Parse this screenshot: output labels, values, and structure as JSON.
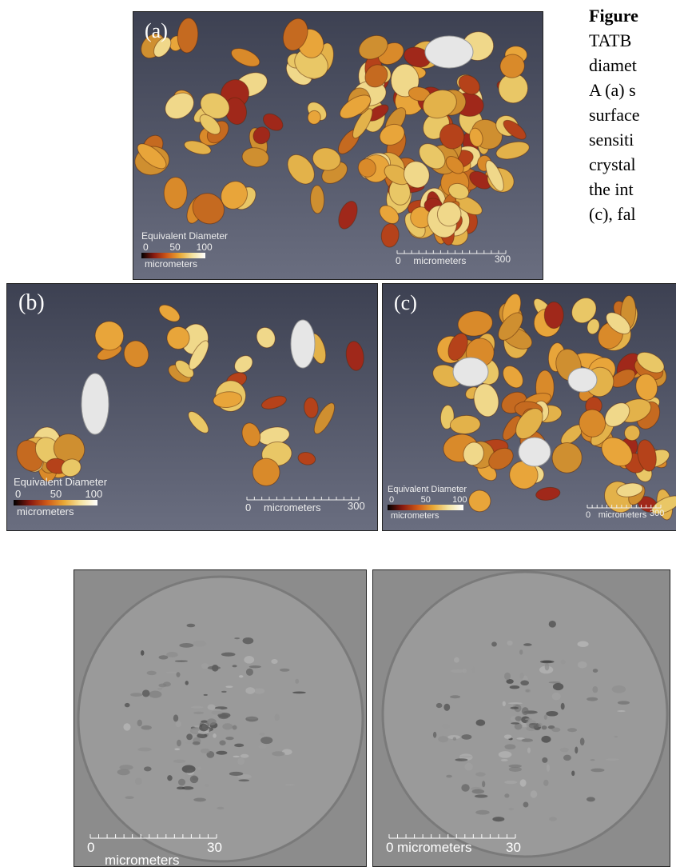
{
  "caption": {
    "lines": [
      "Figure",
      "TATB",
      "diamet",
      "A (a) s",
      "surface",
      "sensiti",
      "crystal",
      "the int",
      "(c), fal"
    ]
  },
  "panels": [
    {
      "label": "(a)",
      "legend_title": "Equivalent Diameter",
      "legend_ticks": [
        "0",
        "50",
        "100"
      ],
      "legend_unit": "micrometers",
      "scale_start": "0",
      "scale_unit": "micrometers",
      "scale_end": "300"
    },
    {
      "label": "(b)",
      "legend_title": "Equivalent Diameter",
      "legend_ticks": [
        "0",
        "50",
        "100"
      ],
      "legend_unit": "micrometers",
      "scale_start": "0",
      "scale_unit": "micrometers",
      "scale_end": "300"
    },
    {
      "label": "(c)",
      "legend_title": "Equivalent Diameter",
      "legend_ticks": [
        "0",
        "50",
        "100"
      ],
      "legend_unit": "micrometers",
      "scale_start": "0",
      "scale_unit": "micrometers",
      "scale_end": "300"
    }
  ],
  "micrographs": [
    {
      "scale_start": "0",
      "scale_unit": "micrometers",
      "scale_end": "30"
    },
    {
      "scale_start": "0",
      "scale_unit": "micrometers",
      "scale_end": "30"
    }
  ]
}
